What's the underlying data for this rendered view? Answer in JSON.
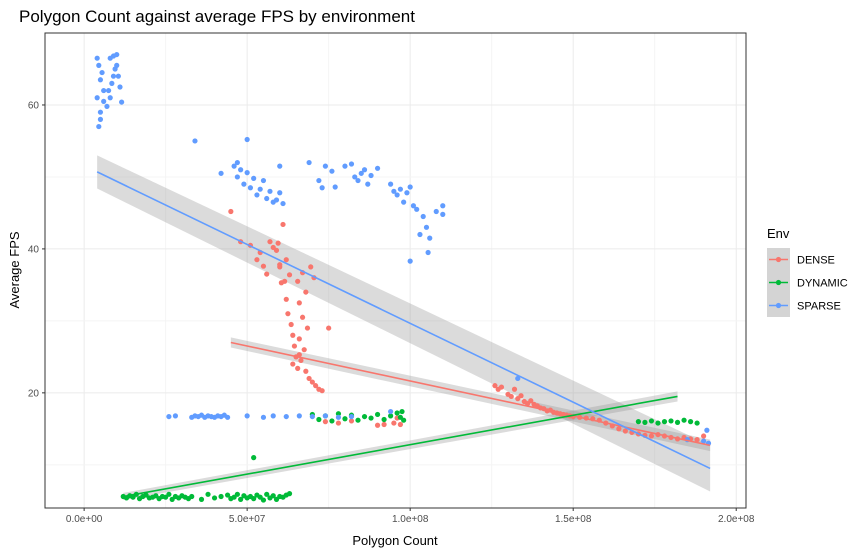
{
  "chart_data": {
    "type": "scatter",
    "title": "Polygon Count against average FPS by environment",
    "xlabel": "Polygon Count",
    "ylabel": "Average FPS",
    "xlim": [
      -12000000.0,
      203000000.0
    ],
    "ylim": [
      4,
      70
    ],
    "x_ticks": [
      0,
      50000000,
      100000000,
      150000000,
      200000000
    ],
    "x_tick_labels": [
      "0.0e+00",
      "5.0e+07",
      "1.0e+08",
      "1.5e+08",
      "2.0e+08"
    ],
    "y_ticks": [
      20,
      40,
      60
    ],
    "y_tick_labels": [
      "20",
      "40",
      "60"
    ],
    "grid": true,
    "legend": {
      "title": "Env",
      "position": "right"
    },
    "series": [
      {
        "name": "DENSE",
        "color": "#F8766D",
        "points": [
          [
            45000000,
            45.2
          ],
          [
            48000000,
            41
          ],
          [
            51000000,
            40.5
          ],
          [
            53000000,
            38.5
          ],
          [
            54000000,
            39.5
          ],
          [
            55000000,
            37.6
          ],
          [
            56000000,
            36.5
          ],
          [
            57000000,
            41
          ],
          [
            58000000,
            40.2
          ],
          [
            59000000,
            39.8
          ],
          [
            59500000,
            40.8
          ],
          [
            60000000,
            37.5
          ],
          [
            60000000,
            37.8
          ],
          [
            61000000,
            43.4
          ],
          [
            61500000,
            35.5
          ],
          [
            62000000,
            33
          ],
          [
            62500000,
            31
          ],
          [
            63000000,
            36.4
          ],
          [
            63500000,
            29.5
          ],
          [
            64000000,
            28
          ],
          [
            64000000,
            24
          ],
          [
            64500000,
            26.5
          ],
          [
            65000000,
            25
          ],
          [
            65500000,
            35.5
          ],
          [
            65500000,
            23.4
          ],
          [
            66000000,
            32.5
          ],
          [
            66000000,
            27.5
          ],
          [
            66500000,
            24.5
          ],
          [
            67000000,
            36.7
          ],
          [
            67000000,
            30.5
          ],
          [
            67500000,
            26
          ],
          [
            68000000,
            23
          ],
          [
            68000000,
            34
          ],
          [
            68500000,
            29
          ],
          [
            69000000,
            22
          ],
          [
            69500000,
            37.5
          ],
          [
            70000000,
            21.5
          ],
          [
            70500000,
            36
          ],
          [
            71000000,
            21
          ],
          [
            72000000,
            20.5
          ],
          [
            73000000,
            20.3
          ],
          [
            75000000,
            29
          ],
          [
            60500000,
            35.3
          ],
          [
            62000000,
            38.5
          ],
          [
            66000000,
            25.3
          ],
          [
            74000000,
            16
          ],
          [
            78000000,
            15.8
          ],
          [
            82000000,
            16.1
          ],
          [
            90000000,
            15.5
          ],
          [
            92000000,
            15.6
          ],
          [
            95000000,
            15.8
          ],
          [
            96000000,
            16.5
          ],
          [
            97000000,
            15.6
          ],
          [
            126000000,
            21
          ],
          [
            127000000,
            20.5
          ],
          [
            128000000,
            20.8
          ],
          [
            130000000,
            19.8
          ],
          [
            131000000,
            19.5
          ],
          [
            132000000,
            20.5
          ],
          [
            133000000,
            19.2
          ],
          [
            134000000,
            19.6
          ],
          [
            135000000,
            18.8
          ],
          [
            136000000,
            18.5
          ],
          [
            137000000,
            18.9
          ],
          [
            138000000,
            18.4
          ],
          [
            139000000,
            18.2
          ],
          [
            140000000,
            17.9
          ],
          [
            141000000,
            17.8
          ],
          [
            142000000,
            17.5
          ],
          [
            143000000,
            17.6
          ],
          [
            144000000,
            17.3
          ],
          [
            145000000,
            17.2
          ],
          [
            146000000,
            17.1
          ],
          [
            147000000,
            17
          ],
          [
            148000000,
            16.9
          ],
          [
            149000000,
            16.8
          ],
          [
            150000000,
            16.7
          ],
          [
            152000000,
            16.6
          ],
          [
            154000000,
            16.5
          ],
          [
            156000000,
            16.4
          ],
          [
            158000000,
            16.2
          ],
          [
            160000000,
            15.8
          ],
          [
            162000000,
            15.4
          ],
          [
            164000000,
            15
          ],
          [
            166000000,
            14.7
          ],
          [
            168000000,
            14.5
          ],
          [
            170000000,
            14.3
          ],
          [
            172000000,
            14.1
          ],
          [
            174000000,
            14
          ],
          [
            176000000,
            14.2
          ],
          [
            178000000,
            14
          ],
          [
            180000000,
            13.8
          ],
          [
            182000000,
            13.6
          ],
          [
            184000000,
            13.8
          ],
          [
            186000000,
            13.6
          ],
          [
            188000000,
            13.5
          ],
          [
            190000000,
            14
          ]
        ],
        "trend": {
          "x": [
            45000000,
            192000000
          ],
          "y": [
            27,
            12.7
          ],
          "se": [
            0.7,
            0.8
          ]
        }
      },
      {
        "name": "DYNAMIC",
        "color": "#00BA38",
        "points": [
          [
            12000000,
            5.6
          ],
          [
            13000000,
            5.4
          ],
          [
            14000000,
            5.7
          ],
          [
            15000000,
            5.5
          ],
          [
            16000000,
            5.9
          ],
          [
            17000000,
            5.3
          ],
          [
            18000000,
            5.6
          ],
          [
            19000000,
            5.8
          ],
          [
            20000000,
            5.4
          ],
          [
            21000000,
            5.5
          ],
          [
            22000000,
            5.7
          ],
          [
            23000000,
            5.3
          ],
          [
            24000000,
            5.6
          ],
          [
            25000000,
            5.5
          ],
          [
            26000000,
            5.9
          ],
          [
            27000000,
            5.2
          ],
          [
            28000000,
            5.6
          ],
          [
            29000000,
            5.4
          ],
          [
            30000000,
            5.7
          ],
          [
            31000000,
            5.5
          ],
          [
            32000000,
            5.3
          ],
          [
            33000000,
            5.6
          ],
          [
            36000000,
            5.2
          ],
          [
            38000000,
            5.9
          ],
          [
            40000000,
            5.4
          ],
          [
            42000000,
            5.6
          ],
          [
            44000000,
            5.8
          ],
          [
            45000000,
            5.3
          ],
          [
            46000000,
            5.5
          ],
          [
            47000000,
            5.9
          ],
          [
            48000000,
            5.2
          ],
          [
            49000000,
            5.7
          ],
          [
            50000000,
            5.4
          ],
          [
            51000000,
            5.6
          ],
          [
            52000000,
            5.3
          ],
          [
            53000000,
            5.8
          ],
          [
            54000000,
            5.5
          ],
          [
            55000000,
            5.1
          ],
          [
            56000000,
            5.9
          ],
          [
            57000000,
            5.4
          ],
          [
            58000000,
            5.7
          ],
          [
            59000000,
            5.2
          ],
          [
            60000000,
            5.6
          ],
          [
            61000000,
            5.5
          ],
          [
            62000000,
            5.8
          ],
          [
            63000000,
            6
          ],
          [
            52000000,
            11
          ],
          [
            70000000,
            17
          ],
          [
            72000000,
            16.3
          ],
          [
            74000000,
            16.8
          ],
          [
            76000000,
            16.1
          ],
          [
            78000000,
            17.1
          ],
          [
            80000000,
            16.4
          ],
          [
            82000000,
            16.9
          ],
          [
            84000000,
            16.2
          ],
          [
            86000000,
            16.7
          ],
          [
            88000000,
            16.5
          ],
          [
            90000000,
            17
          ],
          [
            92000000,
            16.3
          ],
          [
            94000000,
            16.8
          ],
          [
            96000000,
            17.2
          ],
          [
            97000000,
            16.6
          ],
          [
            97500000,
            17.4
          ],
          [
            98000000,
            16.2
          ],
          [
            170000000,
            16
          ],
          [
            172000000,
            15.9
          ],
          [
            174000000,
            16.1
          ],
          [
            176000000,
            15.8
          ],
          [
            178000000,
            16
          ],
          [
            180000000,
            16.1
          ],
          [
            182000000,
            15.9
          ],
          [
            184000000,
            16.2
          ],
          [
            186000000,
            16
          ],
          [
            188000000,
            15.8
          ]
        ],
        "trend": {
          "x": [
            12000000,
            182000000
          ],
          "y": [
            5.6,
            19.5
          ],
          "se": [
            0.5,
            0.7
          ]
        }
      },
      {
        "name": "SPARSE",
        "color": "#619CFF",
        "points": [
          [
            4000000,
            66.5
          ],
          [
            5000000,
            63.5
          ],
          [
            4000000,
            61
          ],
          [
            5000000,
            59
          ],
          [
            4500000,
            57
          ],
          [
            5500000,
            64.5
          ],
          [
            6000000,
            62
          ],
          [
            4500000,
            65.5
          ],
          [
            5000000,
            58
          ],
          [
            6000000,
            60.5
          ],
          [
            7000000,
            59.8
          ],
          [
            7500000,
            62
          ],
          [
            8000000,
            61
          ],
          [
            8500000,
            63
          ],
          [
            9000000,
            66.8
          ],
          [
            9500000,
            65
          ],
          [
            10000000,
            67
          ],
          [
            10500000,
            64
          ],
          [
            11000000,
            62.5
          ],
          [
            11500000,
            60.4
          ],
          [
            8000000,
            66.5
          ],
          [
            9000000,
            64
          ],
          [
            10000000,
            65.5
          ],
          [
            26000000,
            16.7
          ],
          [
            28000000,
            16.8
          ],
          [
            33000000,
            16.6
          ],
          [
            34000000,
            16.8
          ],
          [
            35000000,
            16.7
          ],
          [
            36000000,
            16.9
          ],
          [
            37000000,
            16.6
          ],
          [
            38000000,
            16.8
          ],
          [
            39000000,
            16.7
          ],
          [
            40000000,
            16.6
          ],
          [
            41000000,
            16.8
          ],
          [
            42000000,
            16.7
          ],
          [
            43000000,
            16.9
          ],
          [
            44000000,
            16.6
          ],
          [
            50000000,
            16.8
          ],
          [
            55000000,
            16.6
          ],
          [
            58000000,
            16.8
          ],
          [
            62000000,
            16.7
          ],
          [
            66000000,
            16.8
          ],
          [
            70000000,
            16.7
          ],
          [
            74000000,
            16.8
          ],
          [
            78000000,
            16.6
          ],
          [
            82000000,
            16.7
          ],
          [
            94000000,
            17.4
          ],
          [
            34000000,
            55
          ],
          [
            42000000,
            50.5
          ],
          [
            46000000,
            51.5
          ],
          [
            47000000,
            50
          ],
          [
            48000000,
            51
          ],
          [
            49000000,
            49
          ],
          [
            50000000,
            50.6
          ],
          [
            51000000,
            48.5
          ],
          [
            52000000,
            49.8
          ],
          [
            53000000,
            47.5
          ],
          [
            54000000,
            48.3
          ],
          [
            55000000,
            49.5
          ],
          [
            56000000,
            47
          ],
          [
            57000000,
            48
          ],
          [
            58000000,
            46.5
          ],
          [
            59000000,
            46.8
          ],
          [
            60000000,
            47.8
          ],
          [
            61000000,
            46.3
          ],
          [
            50000000,
            55.2
          ],
          [
            47000000,
            52
          ],
          [
            60000000,
            51.5
          ],
          [
            69000000,
            52
          ],
          [
            72000000,
            49.5
          ],
          [
            73000000,
            48.5
          ],
          [
            74000000,
            51.5
          ],
          [
            76000000,
            50.8
          ],
          [
            77000000,
            48.6
          ],
          [
            80000000,
            51.5
          ],
          [
            82000000,
            51.8
          ],
          [
            83000000,
            50
          ],
          [
            84000000,
            49.5
          ],
          [
            85000000,
            50.5
          ],
          [
            86000000,
            51
          ],
          [
            87000000,
            49
          ],
          [
            88000000,
            50.2
          ],
          [
            90000000,
            51.2
          ],
          [
            94000000,
            49
          ],
          [
            95000000,
            48
          ],
          [
            96000000,
            47.5
          ],
          [
            97000000,
            48.3
          ],
          [
            98000000,
            46.5
          ],
          [
            99000000,
            47.8
          ],
          [
            100000000,
            48.6
          ],
          [
            101000000,
            46
          ],
          [
            102000000,
            45.5
          ],
          [
            103000000,
            42
          ],
          [
            104000000,
            44.5
          ],
          [
            105000000,
            43
          ],
          [
            106000000,
            41.5
          ],
          [
            105500000,
            39.5
          ],
          [
            108000000,
            45.2
          ],
          [
            110000000,
            46
          ],
          [
            110000000,
            44.8
          ],
          [
            100000000,
            38.3
          ],
          [
            133000000,
            22
          ],
          [
            185000000,
            13.5
          ],
          [
            190000000,
            13.3
          ],
          [
            191000000,
            14.8
          ],
          [
            191500000,
            13
          ]
        ],
        "trend": {
          "x": [
            4000000,
            192000000
          ],
          "y": [
            50.7,
            9.5
          ],
          "se": [
            2.3,
            3.2
          ]
        }
      }
    ]
  }
}
